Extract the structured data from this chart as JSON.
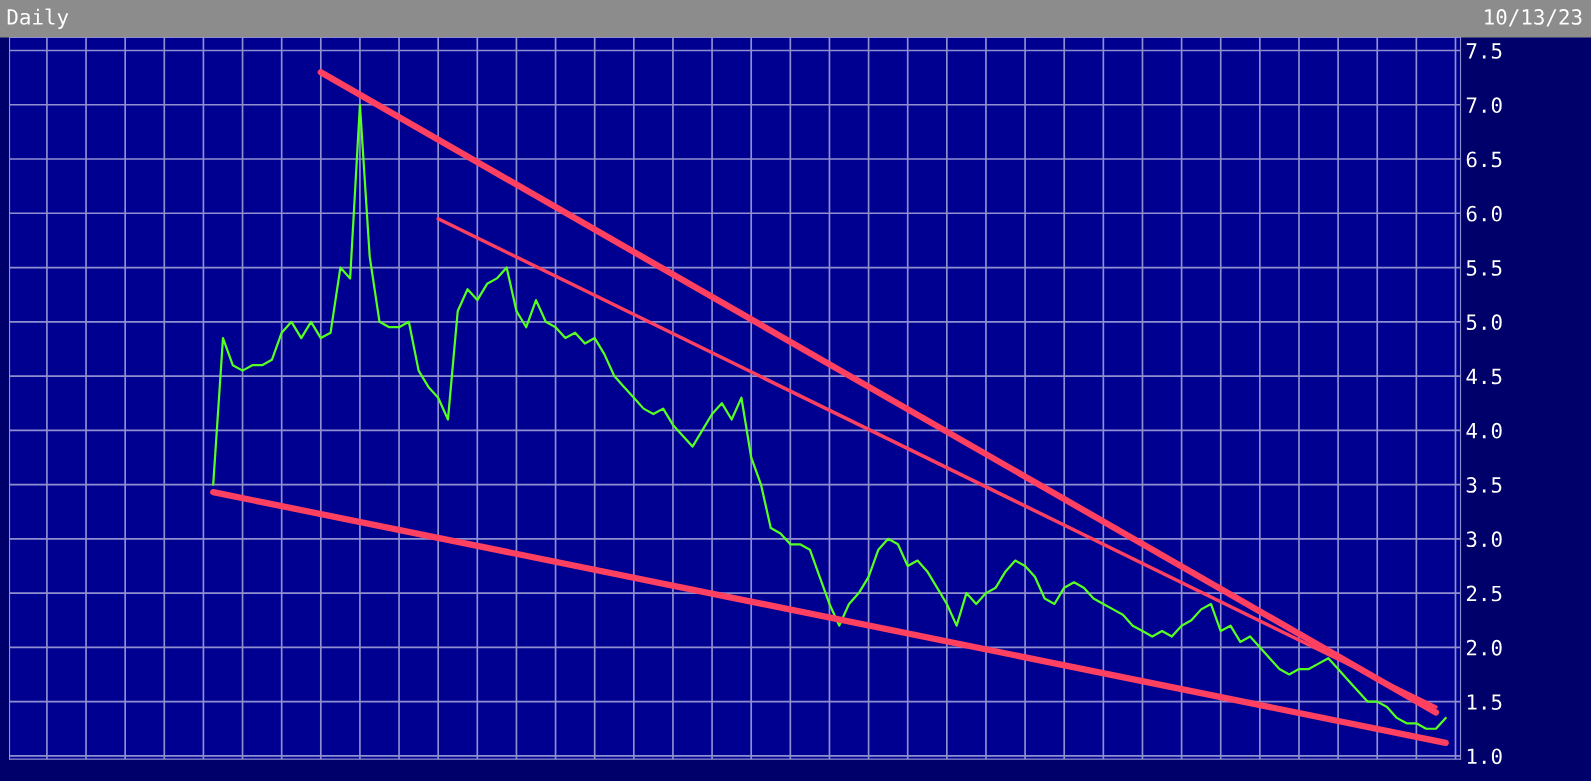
{
  "chart_data": {
    "type": "line",
    "title": "Daily",
    "annotations": [
      "10/13/23"
    ],
    "categories": [
      null,
      null,
      null,
      null,
      null,
      null,
      null,
      null,
      null,
      null,
      null,
      null,
      null,
      null,
      null,
      null,
      null,
      null,
      null,
      null,
      null,
      null,
      null,
      null,
      null,
      null,
      null,
      null,
      null,
      null,
      null,
      null,
      null,
      null,
      null,
      null,
      null,
      null,
      null,
      null,
      null,
      null,
      null,
      null,
      null,
      null,
      null,
      null,
      null,
      null,
      null,
      null,
      null,
      null,
      null,
      null,
      null,
      null,
      null,
      null,
      null,
      null,
      null,
      null,
      null,
      null,
      null,
      null,
      null,
      null,
      null,
      null,
      null,
      null,
      null,
      null,
      null,
      null,
      null,
      null,
      null,
      null,
      null,
      null,
      null,
      null,
      null,
      null,
      null,
      null,
      null,
      null,
      null,
      null,
      null,
      null,
      null,
      null,
      null,
      null,
      null,
      null,
      null,
      null,
      null,
      null,
      null,
      null,
      null,
      null,
      null,
      null,
      null,
      null,
      null,
      null,
      null,
      null,
      null,
      null,
      null,
      null,
      null,
      null,
      null,
      null,
      null
    ],
    "series": [
      {
        "color": "#55ff22",
        "values": [
          3.5,
          4.85,
          4.6,
          4.55,
          4.6,
          4.6,
          4.65,
          4.9,
          5.0,
          4.85,
          5.0,
          4.85,
          4.9,
          5.5,
          5.4,
          7.0,
          5.6,
          5.0,
          4.95,
          4.95,
          5.0,
          4.55,
          4.4,
          4.3,
          4.1,
          5.1,
          5.3,
          5.2,
          5.35,
          5.4,
          5.5,
          5.1,
          4.95,
          5.2,
          5.0,
          4.95,
          4.85,
          4.9,
          4.8,
          4.85,
          4.7,
          4.5,
          4.4,
          4.3,
          4.2,
          4.15,
          4.2,
          4.05,
          3.95,
          3.85,
          4.0,
          4.15,
          4.25,
          4.1,
          4.3,
          3.75,
          3.5,
          3.1,
          3.05,
          2.95,
          2.95,
          2.9,
          2.65,
          2.4,
          2.2,
          2.4,
          2.5,
          2.65,
          2.9,
          3.0,
          2.95,
          2.75,
          2.8,
          2.7,
          2.55,
          2.4,
          2.2,
          2.5,
          2.4,
          2.5,
          2.55,
          2.7,
          2.8,
          2.75,
          2.65,
          2.45,
          2.4,
          2.55,
          2.6,
          2.55,
          2.45,
          2.4,
          2.35,
          2.3,
          2.2,
          2.15,
          2.1,
          2.15,
          2.1,
          2.2,
          2.25,
          2.35,
          2.4,
          2.15,
          2.2,
          2.05,
          2.1,
          2.0,
          1.9,
          1.8,
          1.75,
          1.8,
          1.8,
          1.85,
          1.9,
          1.8,
          1.7,
          1.6,
          1.5,
          1.5,
          1.45,
          1.35,
          1.3,
          1.3,
          1.25,
          1.25,
          1.35
        ]
      },
      {
        "type": "line",
        "color": "#ff4060",
        "values": [
          null,
          null,
          null,
          null,
          null,
          null,
          null,
          null,
          null,
          null,
          null,
          7.3,
          null,
          null,
          null,
          null,
          null,
          null,
          null,
          null,
          null,
          null,
          null,
          null,
          null,
          null,
          null,
          null,
          null,
          null,
          null,
          null,
          null,
          null,
          null,
          null,
          null,
          null,
          null,
          null,
          null,
          null,
          null,
          null,
          null,
          null,
          null,
          null,
          null,
          null,
          null,
          null,
          null,
          null,
          null,
          null,
          null,
          null,
          null,
          null,
          null,
          null,
          null,
          null,
          null,
          null,
          null,
          null,
          null,
          null,
          null,
          null,
          null,
          null,
          null,
          null,
          null,
          null,
          null,
          null,
          null,
          null,
          null,
          null,
          null,
          null,
          null,
          null,
          null,
          null,
          null,
          null,
          null,
          null,
          null,
          null,
          null,
          null,
          null,
          null,
          null,
          null,
          null,
          null,
          null,
          null,
          null,
          null,
          null,
          null,
          null,
          null,
          null,
          null,
          null,
          null,
          null,
          null,
          null,
          null,
          null,
          null,
          null,
          null,
          null,
          1.4,
          null
        ]
      },
      {
        "type": "line",
        "color": "#ff4060",
        "values": [
          null,
          null,
          null,
          null,
          null,
          null,
          null,
          null,
          null,
          null,
          null,
          null,
          null,
          null,
          null,
          null,
          null,
          null,
          null,
          null,
          null,
          null,
          null,
          5.95,
          null,
          null,
          null,
          null,
          null,
          null,
          null,
          null,
          null,
          null,
          null,
          null,
          null,
          null,
          null,
          null,
          null,
          null,
          null,
          null,
          null,
          null,
          null,
          null,
          null,
          null,
          null,
          null,
          null,
          null,
          null,
          null,
          null,
          null,
          null,
          null,
          null,
          null,
          null,
          null,
          null,
          null,
          null,
          null,
          null,
          null,
          null,
          null,
          null,
          null,
          null,
          null,
          null,
          null,
          null,
          null,
          null,
          null,
          null,
          null,
          null,
          null,
          null,
          null,
          null,
          null,
          null,
          null,
          null,
          null,
          null,
          null,
          null,
          null,
          null,
          null,
          null,
          null,
          null,
          null,
          null,
          null,
          null,
          null,
          null,
          null,
          null,
          null,
          null,
          null,
          null,
          null,
          null,
          null,
          null,
          null,
          null,
          null,
          null,
          null,
          null,
          1.45,
          null
        ]
      },
      {
        "type": "line",
        "color": "#ff4060",
        "values": [
          3.43,
          null,
          null,
          null,
          null,
          null,
          null,
          null,
          null,
          null,
          null,
          null,
          null,
          null,
          null,
          null,
          null,
          null,
          null,
          null,
          null,
          null,
          null,
          null,
          null,
          null,
          null,
          null,
          null,
          null,
          null,
          null,
          null,
          null,
          null,
          null,
          null,
          null,
          null,
          null,
          null,
          null,
          null,
          null,
          null,
          null,
          null,
          null,
          null,
          null,
          null,
          null,
          null,
          null,
          null,
          null,
          null,
          null,
          null,
          null,
          null,
          null,
          null,
          null,
          null,
          null,
          null,
          null,
          null,
          null,
          null,
          null,
          null,
          null,
          null,
          null,
          null,
          null,
          null,
          null,
          null,
          null,
          null,
          null,
          null,
          null,
          null,
          null,
          null,
          null,
          null,
          null,
          null,
          null,
          null,
          null,
          null,
          null,
          null,
          null,
          null,
          null,
          null,
          null,
          null,
          null,
          null,
          null,
          null,
          null,
          null,
          null,
          null,
          null,
          null,
          null,
          null,
          null,
          null,
          null,
          null,
          null,
          null,
          null,
          null,
          null,
          1.12
        ]
      }
    ],
    "ylim": [
      0.97,
      7.62
    ],
    "yticks": [
      {
        "value": 1.0,
        "label": "1.0"
      },
      {
        "value": 1.5,
        "label": "1.5"
      },
      {
        "value": 2.0,
        "label": "2.0"
      },
      {
        "value": 2.5,
        "label": "2.5"
      },
      {
        "value": 3.0,
        "label": "3.0"
      },
      {
        "value": 3.5,
        "label": "3.5"
      },
      {
        "value": 4.0,
        "label": "4.0"
      },
      {
        "value": 4.5,
        "label": "4.5"
      },
      {
        "value": 5.0,
        "label": "5.0"
      },
      {
        "value": 5.5,
        "label": "5.5"
      },
      {
        "value": 6.0,
        "label": "6.0"
      },
      {
        "value": 6.5,
        "label": "6.5"
      },
      {
        "value": 7.0,
        "label": "7.0"
      },
      {
        "value": 7.5,
        "label": "7.5"
      }
    ],
    "grid": true,
    "tick_labels": "y"
  }
}
